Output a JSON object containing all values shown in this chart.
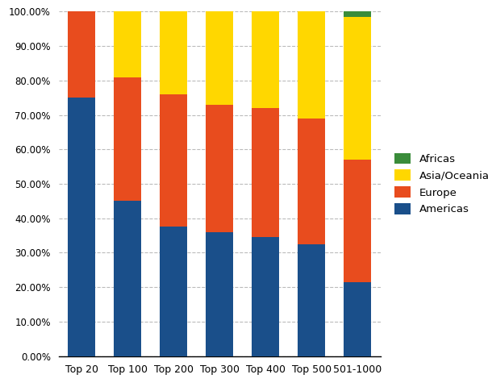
{
  "categories": [
    "Top 20",
    "Top 100",
    "Top 200",
    "Top 300",
    "Top 400",
    "Top 500",
    "501-1000"
  ],
  "americas": [
    75.0,
    45.0,
    37.5,
    36.0,
    34.5,
    32.5,
    21.5
  ],
  "europe": [
    25.0,
    36.0,
    38.5,
    37.0,
    37.5,
    36.5,
    35.5
  ],
  "asia_oceania": [
    0.0,
    19.0,
    24.0,
    27.0,
    28.0,
    31.0,
    41.5
  ],
  "africas": [
    0.0,
    0.0,
    0.0,
    0.0,
    0.0,
    0.0,
    1.5
  ],
  "colors": {
    "americas": "#1a4f8a",
    "europe": "#e84c1e",
    "asia_oceania": "#ffd700",
    "africas": "#3a8c3a"
  },
  "legend_labels": [
    "Africas",
    "Asia/Oceania",
    "Europe",
    "Americas"
  ],
  "ylim": [
    0,
    100
  ],
  "ytick_labels": [
    "0.00%",
    "10.00%",
    "20.00%",
    "30.00%",
    "40.00%",
    "50.00%",
    "60.00%",
    "70.00%",
    "80.00%",
    "90.00%",
    "100.00%"
  ],
  "ytick_values": [
    0,
    10,
    20,
    30,
    40,
    50,
    60,
    70,
    80,
    90,
    100
  ],
  "grid_color": "#bbbbbb",
  "background_color": "#ffffff",
  "bar_width": 0.6
}
